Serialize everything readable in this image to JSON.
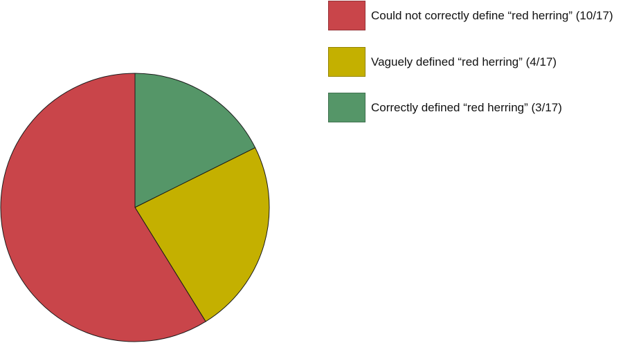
{
  "chart_data": {
    "type": "pie",
    "start": "top",
    "direction": "clockwise",
    "slices": [
      {
        "label": "Correctly defined “red herring” (3/17)",
        "value": 3,
        "color": "#559668"
      },
      {
        "label": "Vaguely defined “red herring” (4/17)",
        "value": 4,
        "color": "#C4B000"
      },
      {
        "label": "Could not correctly define “red herring” (10/17)",
        "value": 10,
        "color": "#C9454A"
      }
    ],
    "legend": {
      "placement": "top-right",
      "order": [
        2,
        1,
        0
      ]
    }
  }
}
